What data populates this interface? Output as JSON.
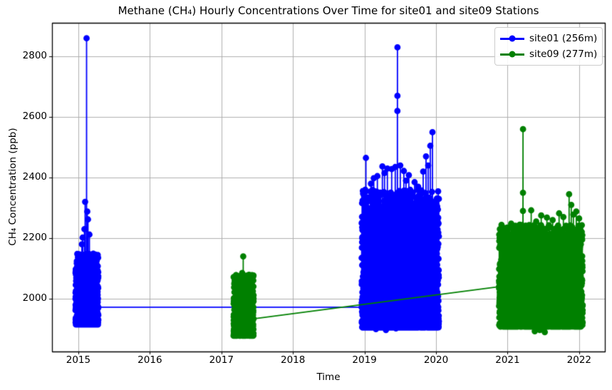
{
  "chart_data": {
    "type": "line",
    "title": "Methane (CH₄) Hourly Concentrations Over Time for site01 and site09 Stations",
    "xlabel": "Time",
    "ylabel": "CH₄ Concentration (ppb)",
    "xlim": [
      2014.632,
      2022.36
    ],
    "ylim": [
      1826,
      2911
    ],
    "xticks": [
      2015,
      2016,
      2017,
      2018,
      2019,
      2020,
      2021,
      2022
    ],
    "yticks": [
      2000,
      2200,
      2400,
      2600,
      2800
    ],
    "grid": true,
    "grid_color": "#b0b0b0",
    "spine_color": "#000000",
    "legend_position": "upper right",
    "marker": "o",
    "series": [
      {
        "name": "site01 (256m)",
        "color": "#0000ff",
        "seed": 42,
        "clusters": [
          {
            "t_start": 2014.96,
            "t_end": 2015.28,
            "n_points": 950,
            "v_min": 1915,
            "v_max": 2150,
            "density_power": 2.0,
            "exit_value": 1972,
            "spikes": [
              {
                "t": 2015.115,
                "values": [
                  2860
                ]
              },
              {
                "t": 2015.095,
                "values": [
                  2320
                ]
              },
              {
                "t": 2015.125,
                "values": [
                  2288
                ]
              },
              {
                "t": 2015.135,
                "values": [
                  2262
                ]
              },
              {
                "t": 2015.085,
                "values": [
                  2230
                ]
              },
              {
                "t": 2015.06,
                "values": [
                  2202
                ]
              },
              {
                "t": 2015.155,
                "values": [
                  2212
                ]
              },
              {
                "t": 2015.05,
                "values": [
                  2180
                ]
              }
            ]
          },
          {
            "t_start": 2018.96,
            "t_end": 2020.04,
            "n_points": 2600,
            "v_min": 1905,
            "v_max": 2360,
            "density_power": 2.4,
            "entry_value": 1972,
            "spikes": [
              {
                "t": 2019.02,
                "values": [
                  2465
                ]
              },
              {
                "t": 2019.46,
                "values": [
                  2620,
                  2670,
                  2830
                ]
              },
              {
                "t": 2019.95,
                "values": [
                  2550
                ]
              },
              {
                "t": 2019.92,
                "values": [
                  2505
                ]
              },
              {
                "t": 2019.86,
                "values": [
                  2470
                ]
              },
              {
                "t": 2019.25,
                "values": [
                  2437
                ]
              },
              {
                "t": 2019.32,
                "values": [
                  2430
                ]
              },
              {
                "t": 2019.38,
                "values": [
                  2428
                ]
              },
              {
                "t": 2019.13,
                "values": [
                  2398
                ]
              },
              {
                "t": 2019.55,
                "values": [
                  2422
                ]
              },
              {
                "t": 2019.62,
                "values": [
                  2408
                ]
              },
              {
                "t": 2019.7,
                "values": [
                  2385
                ]
              },
              {
                "t": 2019.5,
                "values": [
                  2440
                ]
              },
              {
                "t": 2019.09,
                "values": [
                  2380
                ]
              },
              {
                "t": 2019.18,
                "values": [
                  2405
                ]
              },
              {
                "t": 2019.28,
                "values": [
                  2415
                ]
              },
              {
                "t": 2019.43,
                "values": [
                  2435
                ]
              },
              {
                "t": 2019.58,
                "values": [
                  2390
                ]
              },
              {
                "t": 2019.75,
                "values": [
                  2370
                ]
              },
              {
                "t": 2019.82,
                "values": [
                  2420
                ]
              },
              {
                "t": 2019.89,
                "values": [
                  2440
                ]
              },
              {
                "t": 2019.16,
                "values": [
                  1900
                ]
              },
              {
                "t": 2019.3,
                "values": [
                  1897
                ]
              },
              {
                "t": 2019.44,
                "values": [
                  1902
                ]
              }
            ]
          }
        ]
      },
      {
        "name": "site09 (277m)",
        "color": "#008000",
        "seed": 7,
        "clusters": [
          {
            "t_start": 2017.17,
            "t_end": 2017.45,
            "n_points": 850,
            "v_min": 1878,
            "v_max": 2080,
            "density_power": 1.8,
            "exit_value": 1934,
            "spikes": [
              {
                "t": 2017.305,
                "values": [
                  2140
                ]
              },
              {
                "t": 2017.29,
                "values": [
                  2085
                ]
              }
            ]
          },
          {
            "t_start": 2020.88,
            "t_end": 2022.05,
            "n_points": 2600,
            "v_min": 1908,
            "v_max": 2245,
            "density_power": 1.9,
            "entry_value": 2040,
            "spikes": [
              {
                "t": 2021.215,
                "values": [
                  2290,
                  2350,
                  2560
                ]
              },
              {
                "t": 2021.86,
                "values": [
                  2345
                ]
              },
              {
                "t": 2021.89,
                "values": [
                  2310
                ]
              },
              {
                "t": 2021.33,
                "values": [
                  2292
                ]
              },
              {
                "t": 2021.96,
                "values": [
                  2288
                ]
              },
              {
                "t": 2021.47,
                "values": [
                  2275
                ]
              },
              {
                "t": 2021.55,
                "values": [
                  2268
                ]
              },
              {
                "t": 2021.72,
                "values": [
                  2282
                ]
              },
              {
                "t": 2021.4,
                "values": [
                  2255
                ]
              },
              {
                "t": 2021.05,
                "values": [
                  2248
                ]
              },
              {
                "t": 2021.12,
                "values": [
                  2240
                ]
              },
              {
                "t": 2021.63,
                "values": [
                  2260
                ]
              },
              {
                "t": 2021.78,
                "values": [
                  2270
                ]
              },
              {
                "t": 2022.0,
                "values": [
                  2265
                ]
              },
              {
                "t": 2021.92,
                "values": [
                  2278
                ]
              },
              {
                "t": 2021.38,
                "values": [
                  1893
                ]
              },
              {
                "t": 2021.52,
                "values": [
                  1890
                ]
              },
              {
                "t": 2021.45,
                "values": [
                  1897
                ]
              }
            ]
          }
        ]
      }
    ]
  }
}
